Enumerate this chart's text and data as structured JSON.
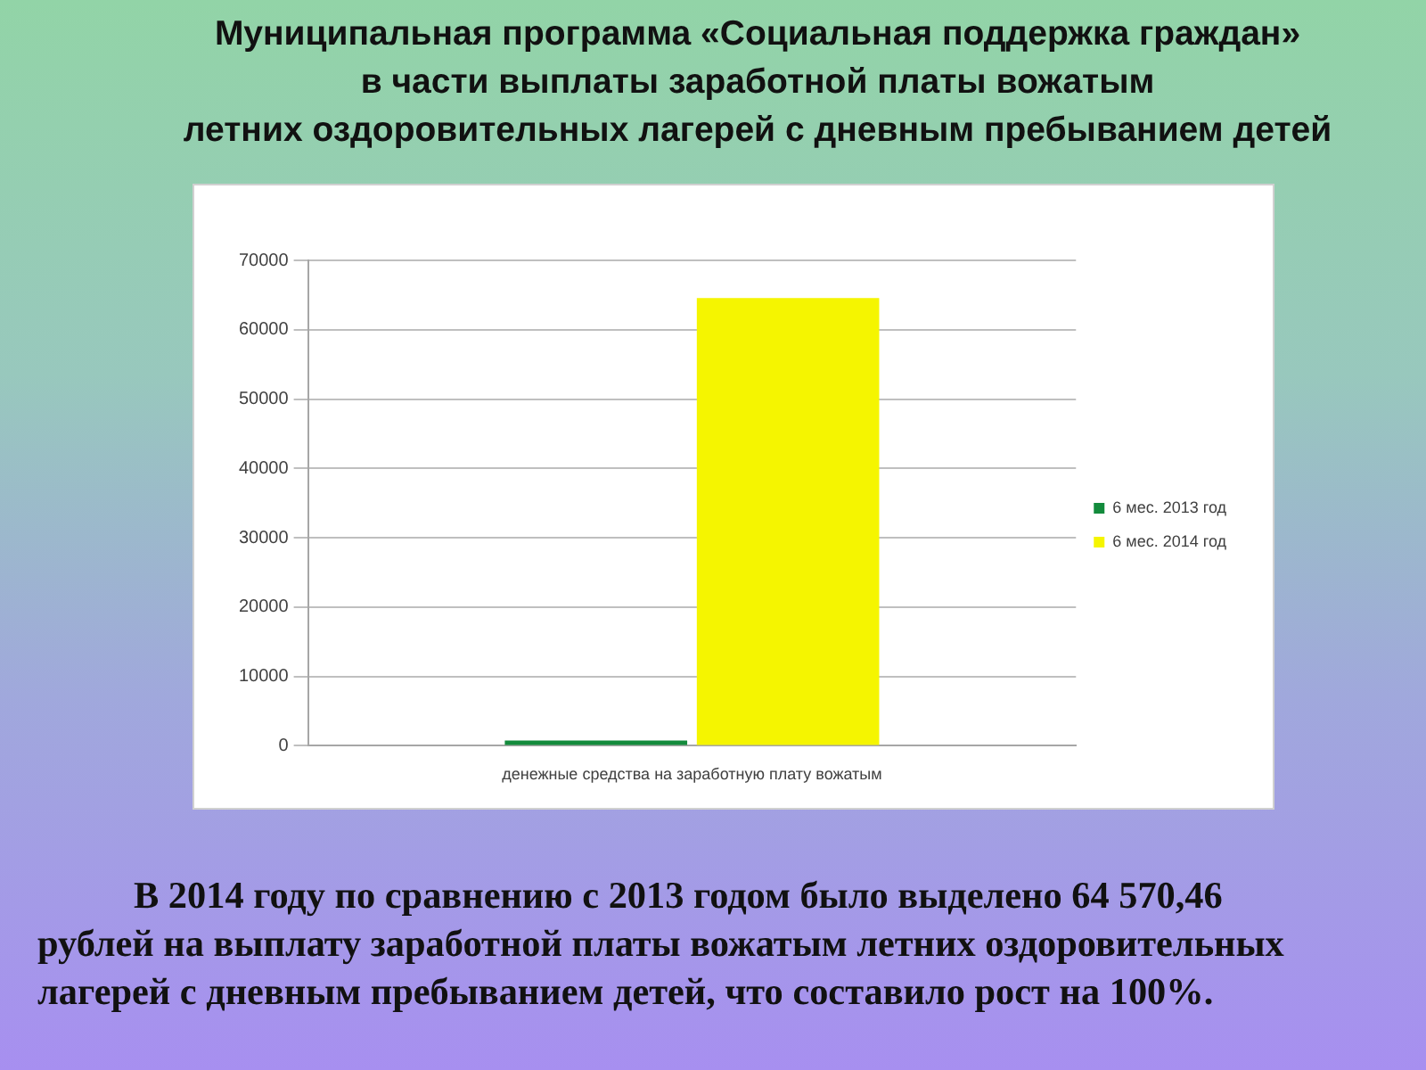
{
  "chart_data": {
    "type": "bar",
    "title": "Муниципальная программа «Социальная поддержка граждан»\nв части выплаты заработной платы вожатым\nлетних оздоровительных лагерей с дневным пребыванием детей",
    "categories": [
      "денежные средства на заработную плату вожатым"
    ],
    "series": [
      {
        "name": "6 мес. 2013 год",
        "color": "#138b3c",
        "values": [
          0
        ]
      },
      {
        "name": "6 мес. 2014 год",
        "color": "#f5f500",
        "values": [
          64570.46
        ]
      }
    ],
    "ylim": [
      0,
      70000
    ],
    "yticks": [
      0,
      10000,
      20000,
      30000,
      40000,
      50000,
      60000,
      70000
    ],
    "grid": "y",
    "legend": "right",
    "annotations": [
      "В 2014 году по сравнению с 2013 годом было выделено 64 570,46\nрублей на выплату заработной платы вожатым летних оздоровительных\nлагерей с дневным пребыванием детей, что составило рост на 100%."
    ]
  }
}
